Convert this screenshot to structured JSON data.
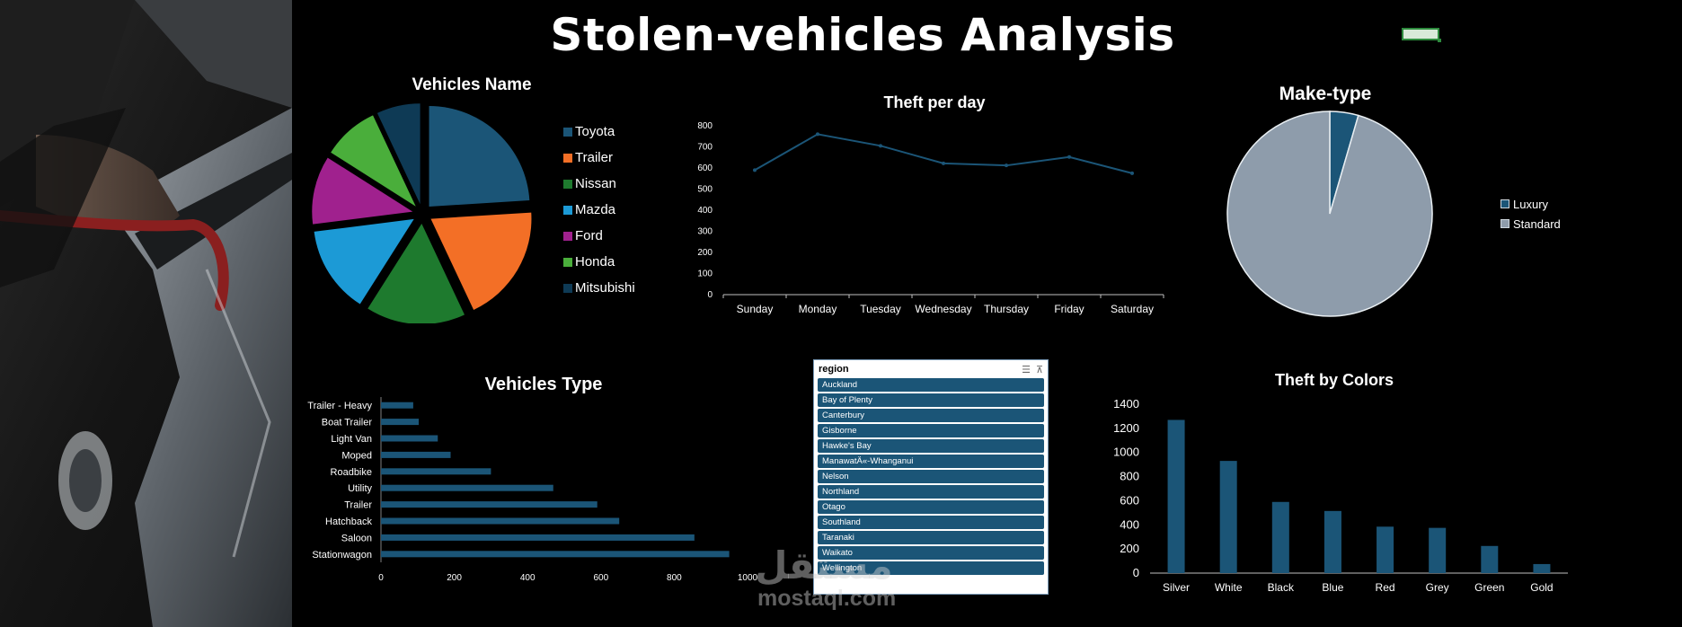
{
  "title": "Stolen-vehicles Analysis",
  "colors": {
    "accent": "#1b5577",
    "background": "#000000"
  },
  "vehicles_name": {
    "title": "Vehicles Name"
  },
  "theft_per_day": {
    "title": "Theft per day"
  },
  "make_type": {
    "title": "Make-type"
  },
  "vehicles_type": {
    "title": "Vehicles Type"
  },
  "theft_by_colors": {
    "title": "Theft by Colors"
  },
  "slicer": {
    "title": "region",
    "items": [
      "Auckland",
      "Bay of Plenty",
      "Canterbury",
      "Gisborne",
      "Hawke's Bay",
      "ManawatÄ«-Whanganui",
      "Nelson",
      "Northland",
      "Otago",
      "Southland",
      "Taranaki",
      "Waikato",
      "Wellington"
    ]
  },
  "watermark": {
    "logo_text": "مستقل",
    "site": "mostaql.com"
  },
  "chart_data": [
    {
      "type": "pie",
      "title": "Vehicles Name",
      "categories": [
        "Toyota",
        "Trailer",
        "Nissan",
        "Mazda",
        "Ford",
        "Honda",
        "Mitsubishi"
      ],
      "values": [
        24,
        19,
        16,
        14,
        11,
        9,
        7
      ],
      "colors": [
        "#1b5577",
        "#f36f26",
        "#1e7a2e",
        "#1c9ad6",
        "#a0218e",
        "#4aae3b",
        "#0e3a55"
      ],
      "exploded": true,
      "legend": "right"
    },
    {
      "type": "line",
      "title": "Theft per day",
      "categories": [
        "Sunday",
        "Monday",
        "Tuesday",
        "Wednesday",
        "Thursday",
        "Friday",
        "Saturday"
      ],
      "values": [
        590,
        760,
        705,
        622,
        612,
        652,
        575
      ],
      "ylim": [
        0,
        800
      ],
      "yticks": [
        0,
        100,
        200,
        300,
        400,
        500,
        600,
        700,
        800
      ],
      "color": "#1b5577"
    },
    {
      "type": "pie",
      "title": "Make-type",
      "categories": [
        "Luxury",
        "Standard"
      ],
      "values": [
        4.5,
        95.5
      ],
      "colors": [
        "#1b5577",
        "#8e9cab"
      ],
      "legend": "right"
    },
    {
      "type": "bar",
      "orientation": "horizontal",
      "title": "Vehicles Type",
      "categories": [
        "Trailer - Heavy",
        "Boat Trailer",
        "Light Van",
        "Moped",
        "Roadbike",
        "Utility",
        "Trailer",
        "Hatchback",
        "Saloon",
        "Stationwagon"
      ],
      "values": [
        88,
        103,
        155,
        190,
        300,
        470,
        590,
        650,
        855,
        950
      ],
      "xlim": [
        0,
        1000
      ],
      "xticks": [
        0,
        200,
        400,
        600,
        800,
        1000
      ],
      "color": "#1b5577"
    },
    {
      "type": "bar",
      "title": "Theft by Colors",
      "categories": [
        "Silver",
        "White",
        "Black",
        "Blue",
        "Red",
        "Grey",
        "Green",
        "Gold"
      ],
      "values": [
        1270,
        930,
        590,
        515,
        385,
        375,
        225,
        75
      ],
      "ylim": [
        0,
        1400
      ],
      "yticks": [
        0,
        200,
        400,
        600,
        800,
        1000,
        1200,
        1400
      ],
      "color": "#1b5577"
    }
  ]
}
